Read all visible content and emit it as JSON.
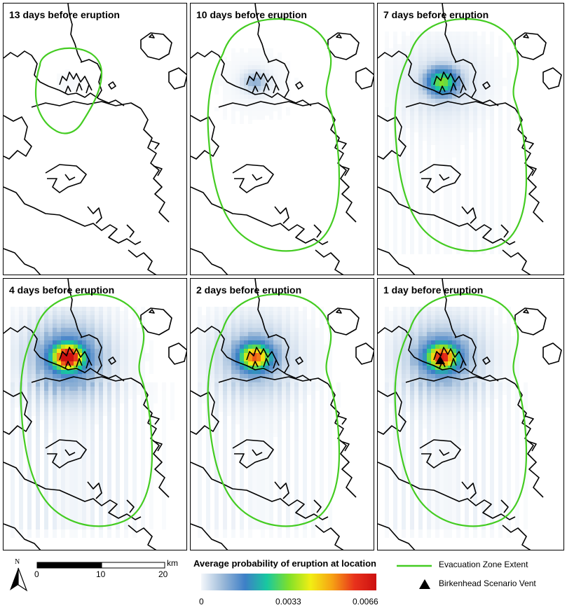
{
  "panels": [
    {
      "title": "13 days before eruption",
      "intensity": 0.02,
      "zone": "small"
    },
    {
      "title": "10 days before eruption",
      "intensity": 0.12,
      "zone": "large"
    },
    {
      "title": "7 days before eruption",
      "intensity": 0.45,
      "zone": "large"
    },
    {
      "title": "4 days before eruption",
      "intensity": 1.0,
      "zone": "large"
    },
    {
      "title": "2 days before eruption",
      "intensity": 0.75,
      "zone": "large"
    },
    {
      "title": "1 day before eruption",
      "intensity": 0.85,
      "zone": "large",
      "vent": true
    }
  ],
  "legend": {
    "north_label": "N",
    "scale_unit": "km",
    "scale_ticks": [
      "0",
      "10",
      "20"
    ],
    "colorbar_title": "Average probability of eruption at location",
    "colorbar_ticks": [
      "0",
      "0.0033",
      "0.0066"
    ],
    "evac_label": "Evacuation Zone Extent",
    "vent_label": "Birkenhead Scenario Vent"
  },
  "colors": {
    "zone": "#44cc22",
    "coast": "#000000",
    "ramp": [
      "#f4f7fb",
      "#9ab8d8",
      "#3d7fc7",
      "#18c8a0",
      "#7fe02a",
      "#f2ee14",
      "#f6a014",
      "#e8321c",
      "#cc1010"
    ]
  }
}
